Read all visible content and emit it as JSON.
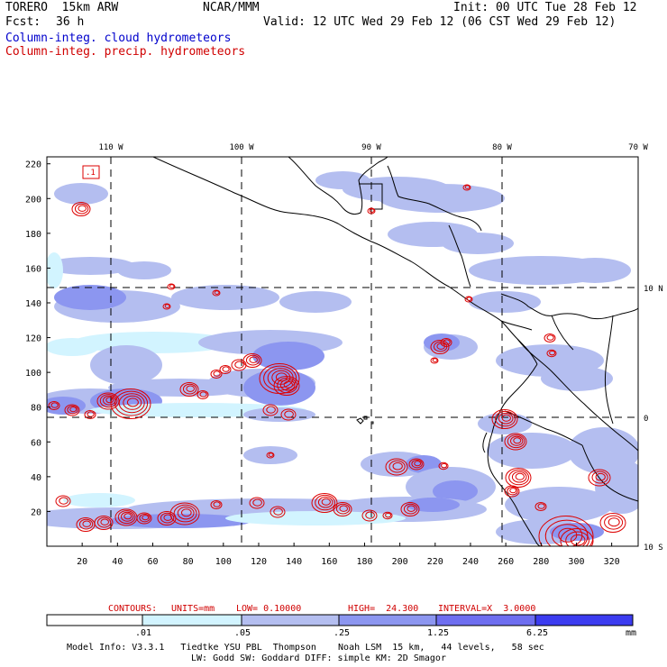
{
  "header": {
    "model": "TORERO  15km ARW",
    "org": "NCAR/MMM",
    "init": "Init: 00 UTC Tue 28 Feb 12",
    "fcst_label": "Fcst:",
    "fcst_value": "36 h",
    "valid": "Valid: 12 UTC Wed 29 Feb 12 (06 CST Wed 29 Feb 12)",
    "field_cloud": "Column-integ. cloud hydrometeors",
    "field_precip": "Column-integ. precip. hydrometeors"
  },
  "colors": {
    "cloud_text": "#0000cc",
    "precip_text": "#d00000",
    "bin1": "#d2f4ff",
    "bin2": "#b4bef0",
    "bin3": "#8c96f0",
    "bin4": "#6e6ef0",
    "bin5": "#3c3cf0",
    "coast": "#000000",
    "precip_contour": "#dd0000"
  },
  "map": {
    "lon_labels": [
      "110 W",
      "100 W",
      "90 W",
      "80 W",
      "70 W"
    ],
    "lat_labels": [
      "10 N",
      "0",
      "10 S"
    ],
    "x_ticks": [
      "20",
      "40",
      "60",
      "80",
      "100",
      "120",
      "140",
      "160",
      "180",
      "200",
      "220",
      "240",
      "260",
      "280",
      "300",
      "320"
    ],
    "y_ticks": [
      "220",
      "200",
      "180",
      "160",
      "140",
      "120",
      "100",
      "80",
      "60",
      "40",
      "20"
    ],
    "corner_label": ".1"
  },
  "contour_info": {
    "label": "CONTOURS:",
    "units": "UNITS=mm",
    "low": "LOW= 0.10000",
    "high": "HIGH=  24.300",
    "interval": "INTERVAL=X  3.0000"
  },
  "colorbar": {
    "thresholds": [
      ".01",
      ".05",
      ".25",
      "1.25",
      "6.25"
    ],
    "unit": "mm"
  },
  "footer": {
    "line1": "Model Info: V3.3.1   Tiedtke YSU PBL  Thompson    Noah LSM  15 km,   44 levels,   58 sec",
    "line2": "LW: Godd SW: Goddard DIFF: simple KM: 2D Smagor"
  }
}
